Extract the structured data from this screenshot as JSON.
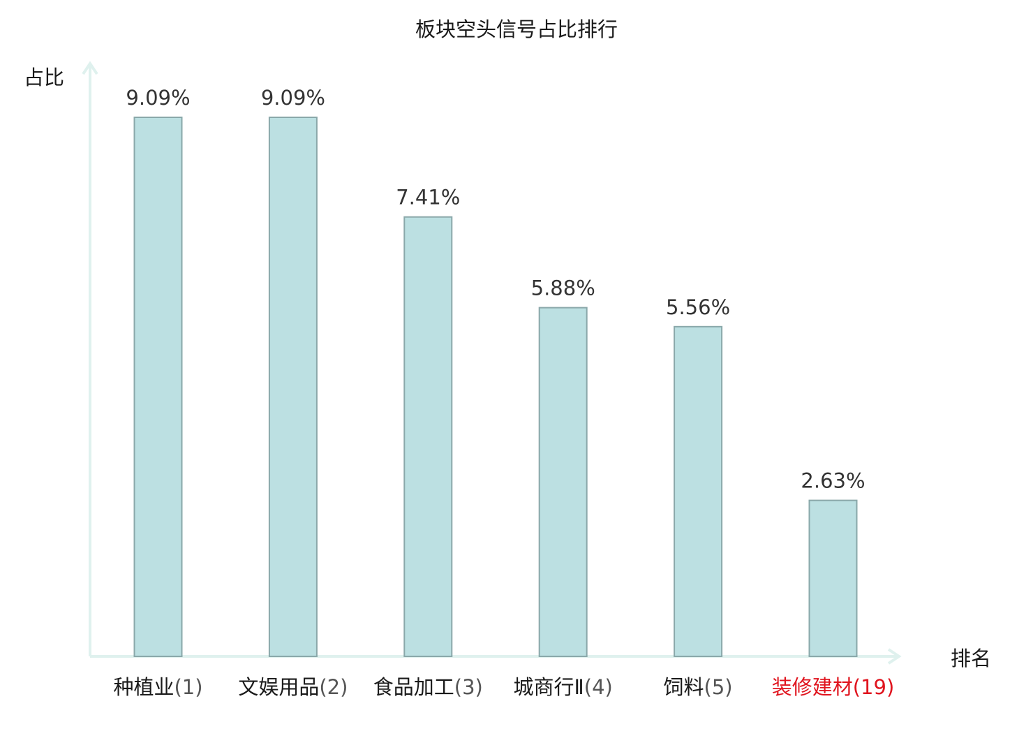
{
  "chart_data": {
    "type": "bar",
    "title": "板块空头信号占比排行",
    "ylabel": "占比",
    "xlabel": "排名",
    "ylim": [
      0,
      10
    ],
    "grid": false,
    "legend": "none",
    "colors": {
      "bar_fill": "#bce0e2",
      "bar_stroke": "#8aa8aa",
      "axis": "#dff1ee",
      "text": "#1a1a1a",
      "value_label": "#333333",
      "rank_paren": "#555555",
      "highlight": "#e0141e"
    },
    "categories": [
      {
        "name": "种植业",
        "rank": "(1)",
        "highlight": false
      },
      {
        "name": "文娱用品",
        "rank": "(2)",
        "highlight": false
      },
      {
        "name": "食品加工",
        "rank": "(3)",
        "highlight": false
      },
      {
        "name": "城商行Ⅱ",
        "rank": "(4)",
        "highlight": false
      },
      {
        "name": "饲料",
        "rank": "(5)",
        "highlight": false
      },
      {
        "name": "装修建材",
        "rank": "(19)",
        "highlight": true
      }
    ],
    "values": [
      9.09,
      9.09,
      7.41,
      5.88,
      5.56,
      2.63
    ],
    "value_labels": [
      "9.09%",
      "9.09%",
      "7.41%",
      "5.88%",
      "5.56%",
      "2.63%"
    ]
  }
}
